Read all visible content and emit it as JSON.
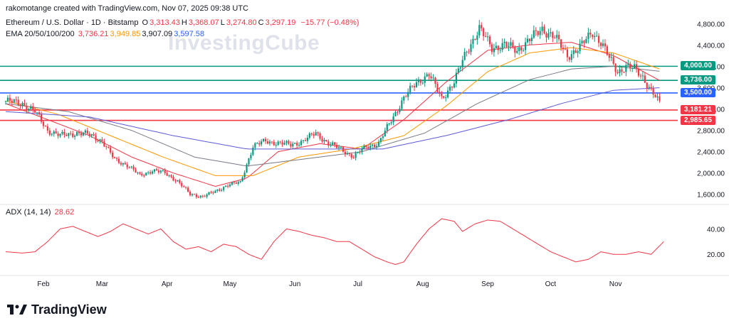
{
  "header": {
    "created_by": "rakomotange created with TradingView.com, Nov 07, 2025 09:38 UTC",
    "symbol": "Ethereum / U.S. Dollar · 1D · Bitstamp",
    "ohlc": [
      {
        "k": "O",
        "v": "3,313.43"
      },
      {
        "k": "H",
        "v": "3,368.07"
      },
      {
        "k": "L",
        "v": "3,274.80"
      },
      {
        "k": "C",
        "v": "3,297.19"
      }
    ],
    "change": "−15.77 (−0.48%)",
    "ema_label": "EMA 20/50/100/200",
    "ema_values": [
      {
        "v": "3,736.21",
        "color": "#f23645"
      },
      {
        "v": "3,949.85",
        "color": "#ff9800"
      },
      {
        "v": "3,907.09",
        "color": "#131722"
      },
      {
        "v": "3,597.58",
        "color": "#2962ff"
      }
    ],
    "adx_label": "ADX (14, 14)",
    "adx_value": "28.62"
  },
  "watermark": "InvestingCube",
  "footer": {
    "brand": "TradingView"
  },
  "colors": {
    "up": "#089981",
    "down": "#f23645",
    "ema20": "#f23645",
    "ema50": "#ff9800",
    "ema100": "#787b86",
    "ema200": "#5b5bd6",
    "adx": "#f23645",
    "teal": "#089981",
    "blue": "#2962ff"
  },
  "chart_data": [
    {
      "type": "candlestick",
      "title": "Ethereum / U.S. Dollar · 1D · Bitstamp",
      "x_labels": [
        "Feb",
        "Mar",
        "Apr",
        "May",
        "Jun",
        "Jul",
        "Aug",
        "Sep",
        "Oct",
        "Nov"
      ],
      "y_ticks": [
        "4,800.00",
        "4,400.00",
        "4,000.00",
        "3,600.00",
        "3,200.00",
        "2,800.00",
        "2,400.00",
        "2,000.00",
        "1,600.00"
      ],
      "y_tick_values": [
        4800,
        4400,
        4000,
        3600,
        3200,
        2800,
        2400,
        2000,
        1600
      ],
      "ylim": [
        1450,
        4950
      ],
      "price_path": [
        [
          0,
          3350
        ],
        [
          8,
          3300
        ],
        [
          14,
          3150
        ],
        [
          20,
          2800
        ],
        [
          26,
          2700
        ],
        [
          34,
          2750
        ],
        [
          40,
          2720
        ],
        [
          46,
          2600
        ],
        [
          52,
          2250
        ],
        [
          58,
          2150
        ],
        [
          64,
          1950
        ],
        [
          70,
          2050
        ],
        [
          76,
          2000
        ],
        [
          82,
          1850
        ],
        [
          88,
          1600
        ],
        [
          94,
          1560
        ],
        [
          100,
          1650
        ],
        [
          106,
          1780
        ],
        [
          112,
          1820
        ],
        [
          118,
          2500
        ],
        [
          124,
          2600
        ],
        [
          130,
          2560
        ],
        [
          136,
          2530
        ],
        [
          142,
          2600
        ],
        [
          148,
          2750
        ],
        [
          154,
          2550
        ],
        [
          160,
          2450
        ],
        [
          166,
          2300
        ],
        [
          172,
          2500
        ],
        [
          178,
          2550
        ],
        [
          184,
          3000
        ],
        [
          190,
          3400
        ],
        [
          196,
          3700
        ],
        [
          202,
          3850
        ],
        [
          208,
          3400
        ],
        [
          214,
          3700
        ],
        [
          220,
          4300
        ],
        [
          226,
          4700
        ],
        [
          232,
          4350
        ],
        [
          238,
          4400
        ],
        [
          244,
          4300
        ],
        [
          250,
          4500
        ],
        [
          256,
          4700
        ],
        [
          262,
          4550
        ],
        [
          268,
          4200
        ],
        [
          274,
          4350
        ],
        [
          280,
          4650
        ],
        [
          284,
          4450
        ],
        [
          288,
          4150
        ],
        [
          292,
          3900
        ],
        [
          296,
          4000
        ],
        [
          300,
          3950
        ],
        [
          304,
          3800
        ],
        [
          308,
          3550
        ],
        [
          312,
          3300
        ]
      ],
      "ema_paths": {
        "ema20": [
          [
            0,
            3300
          ],
          [
            20,
            3000
          ],
          [
            40,
            2700
          ],
          [
            60,
            2300
          ],
          [
            80,
            2000
          ],
          [
            100,
            1750
          ],
          [
            115,
            1900
          ],
          [
            130,
            2400
          ],
          [
            150,
            2550
          ],
          [
            170,
            2450
          ],
          [
            190,
            3000
          ],
          [
            210,
            3700
          ],
          [
            230,
            4300
          ],
          [
            250,
            4400
          ],
          [
            270,
            4450
          ],
          [
            290,
            4200
          ],
          [
            312,
            3736
          ]
        ],
        "ema50": [
          [
            0,
            3350
          ],
          [
            25,
            3100
          ],
          [
            50,
            2700
          ],
          [
            75,
            2300
          ],
          [
            100,
            1950
          ],
          [
            118,
            1950
          ],
          [
            140,
            2300
          ],
          [
            165,
            2450
          ],
          [
            190,
            2700
          ],
          [
            210,
            3250
          ],
          [
            230,
            3900
          ],
          [
            250,
            4250
          ],
          [
            270,
            4350
          ],
          [
            290,
            4250
          ],
          [
            312,
            3950
          ]
        ],
        "ema100": [
          [
            0,
            3300
          ],
          [
            30,
            3150
          ],
          [
            60,
            2800
          ],
          [
            90,
            2300
          ],
          [
            115,
            2130
          ],
          [
            140,
            2250
          ],
          [
            170,
            2400
          ],
          [
            200,
            2750
          ],
          [
            225,
            3300
          ],
          [
            250,
            3750
          ],
          [
            270,
            3950
          ],
          [
            290,
            4000
          ],
          [
            312,
            3907
          ]
        ],
        "ema200": [
          [
            0,
            3150
          ],
          [
            40,
            3050
          ],
          [
            80,
            2700
          ],
          [
            115,
            2450
          ],
          [
            150,
            2450
          ],
          [
            180,
            2450
          ],
          [
            210,
            2700
          ],
          [
            240,
            3000
          ],
          [
            265,
            3300
          ],
          [
            290,
            3550
          ],
          [
            312,
            3598
          ]
        ]
      },
      "horizontal_levels": [
        {
          "value": 4000.0,
          "label": "4,000.00",
          "color": "#089981"
        },
        {
          "value": 3736.0,
          "label": "3,736.00",
          "color": "#089981"
        },
        {
          "value": 3500.0,
          "label": "3,500.00",
          "color": "#2962ff"
        },
        {
          "value": 3181.21,
          "label": "3,181.21",
          "color": "#f23645"
        },
        {
          "value": 2985.65,
          "label": "2,985.65",
          "color": "#f23645"
        }
      ]
    },
    {
      "type": "line",
      "title": "ADX (14, 14)",
      "y_ticks": [
        "40.00",
        "20.00"
      ],
      "y_tick_values": [
        40,
        20
      ],
      "ylim": [
        5,
        57
      ],
      "series": [
        {
          "name": "ADX (14, 14)",
          "points": [
            [
              0,
              22
            ],
            [
              8,
              21
            ],
            [
              14,
              22
            ],
            [
              20,
              30
            ],
            [
              26,
              40
            ],
            [
              32,
              42
            ],
            [
              38,
              38
            ],
            [
              44,
              34
            ],
            [
              50,
              38
            ],
            [
              56,
              44
            ],
            [
              62,
              40
            ],
            [
              68,
              36
            ],
            [
              74,
              40
            ],
            [
              80,
              30
            ],
            [
              86,
              24
            ],
            [
              92,
              26
            ],
            [
              98,
              22
            ],
            [
              104,
              28
            ],
            [
              110,
              26
            ],
            [
              116,
              20
            ],
            [
              122,
              16
            ],
            [
              128,
              30
            ],
            [
              134,
              40
            ],
            [
              140,
              38
            ],
            [
              146,
              35
            ],
            [
              152,
              33
            ],
            [
              158,
              30
            ],
            [
              164,
              30
            ],
            [
              170,
              24
            ],
            [
              176,
              18
            ],
            [
              182,
              14
            ],
            [
              186,
              12
            ],
            [
              190,
              14
            ],
            [
              196,
              28
            ],
            [
              202,
              40
            ],
            [
              208,
              48
            ],
            [
              214,
              46
            ],
            [
              218,
              38
            ],
            [
              224,
              44
            ],
            [
              230,
              47
            ],
            [
              236,
              46
            ],
            [
              242,
              40
            ],
            [
              248,
              34
            ],
            [
              254,
              28
            ],
            [
              260,
              22
            ],
            [
              266,
              18
            ],
            [
              272,
              14
            ],
            [
              278,
              16
            ],
            [
              284,
              22
            ],
            [
              290,
              20
            ],
            [
              296,
              20
            ],
            [
              302,
              22
            ],
            [
              308,
              20
            ],
            [
              314,
              30
            ]
          ]
        }
      ],
      "x_index_max": 320
    }
  ]
}
